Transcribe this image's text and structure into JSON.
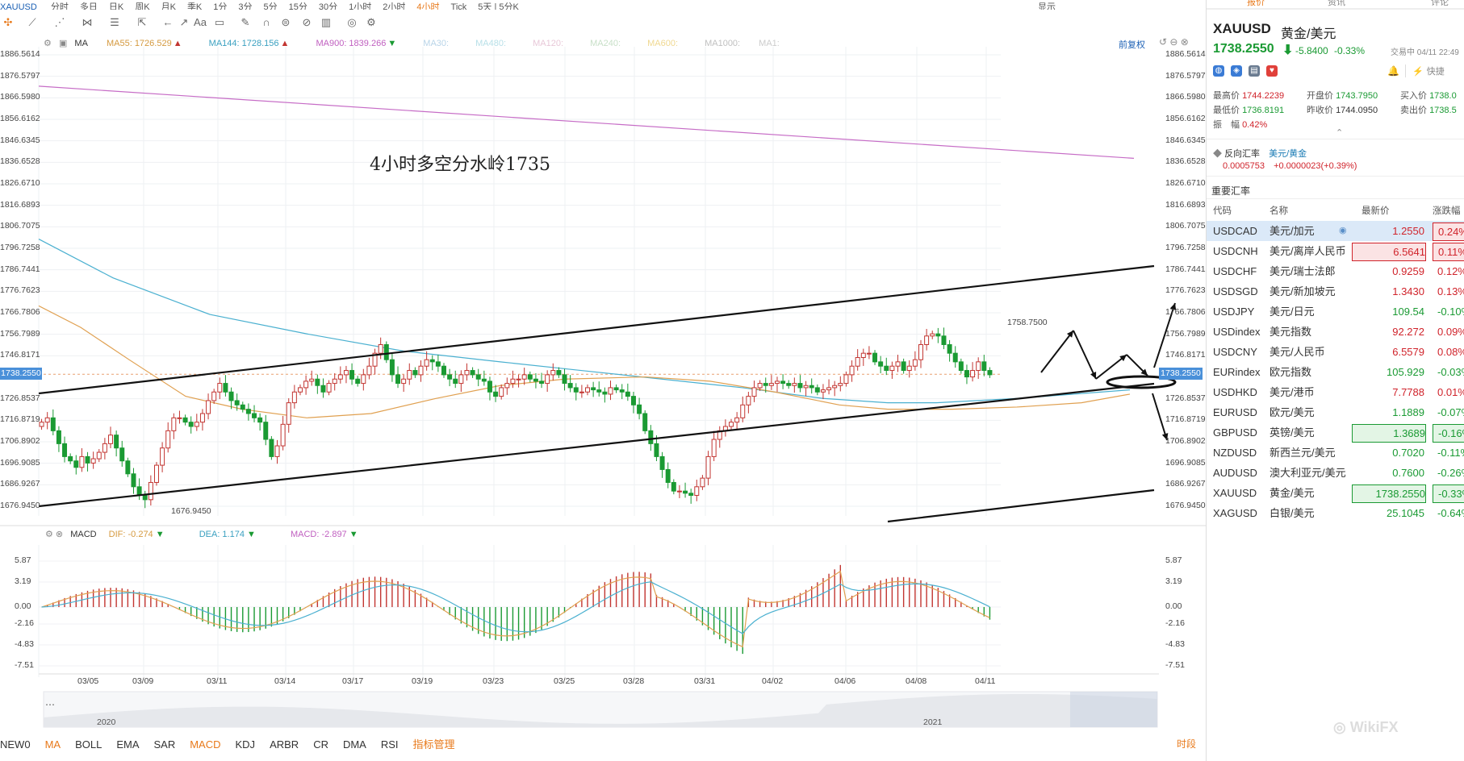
{
  "toolbar_top": {
    "symbol": "XAUUSD",
    "periods": [
      "分时",
      "多日",
      "日K",
      "周K",
      "月K",
      "季K",
      "1分",
      "3分",
      "5分",
      "15分",
      "30分",
      "1小时",
      "2小时",
      "4小时",
      "Tick",
      "5天 | 5分K"
    ],
    "active_period": "4小时",
    "display_label": "显示"
  },
  "indicators": {
    "ma": "MA",
    "ma55": "MA55: 1726.529",
    "ma144": "MA144: 1728.156",
    "ma900": "MA900: 1839.266",
    "ma30": "MA30:",
    "ma480": "MA480:",
    "ma120": "MA120:",
    "ma240": "MA240:",
    "ma600": "MA600:",
    "ma1000": "MA1000:",
    "ma1": "MA1:",
    "reweight": "前复权"
  },
  "chart_annotation": "4小时多空分水岭1735",
  "marker_high": "1758.7500",
  "marker_low": "1676.9450",
  "current_price_tag": "1738.2550",
  "price_ticks": [
    "1886.5614",
    "1876.5797",
    "1866.5980",
    "1856.6162",
    "1846.6345",
    "1836.6528",
    "1826.6710",
    "1816.6893",
    "1806.7075",
    "1796.7258",
    "1786.7441",
    "1776.7623",
    "1766.7806",
    "1756.7989",
    "1746.8171",
    "1738.2550",
    "1726.8537",
    "1716.8719",
    "1706.8902",
    "1696.9085",
    "1686.9267",
    "1676.9450"
  ],
  "macd": {
    "label": "MACD",
    "dif": "DIF: -0.274",
    "dea": "DEA: 1.174",
    "macd": "MACD: -2.897",
    "ticks": [
      "5.87",
      "3.19",
      "0.00",
      "-2.16",
      "-4.83",
      "-7.51"
    ]
  },
  "dates": [
    "03/05",
    "03/09",
    "03/11",
    "03/14",
    "03/17",
    "03/19",
    "03/23",
    "03/25",
    "03/28",
    "03/31",
    "04/02",
    "04/06",
    "04/08",
    "04/11"
  ],
  "navigator": {
    "year_left": "2020",
    "year_right": "2021"
  },
  "bottom_tabs": [
    "NEW0",
    "MA",
    "BOLL",
    "EMA",
    "SAR",
    "MACD",
    "KDJ",
    "ARBR",
    "CR",
    "DMA",
    "RSI",
    "指标管理"
  ],
  "bottom_active": [
    "MA",
    "MACD",
    "指标管理"
  ],
  "bottom_right": "时段",
  "colors": {
    "up": "#c23531",
    "down": "#1a9a33",
    "ma55": "#e0a050",
    "ma144": "#4ab0d0",
    "ma900": "#c66cc6",
    "accent": "#e8791a"
  },
  "panel": {
    "tabs": [
      "报价",
      "资讯",
      "评论"
    ],
    "symbol": "XAUUSD",
    "name": "黄金/美元",
    "price": "1738.2550",
    "change": "-5.8400",
    "change_pct": "-0.33%",
    "status": "交易中 04/11 22:49",
    "quick": "快捷",
    "stats": {
      "high_label": "最高价",
      "high": "1744.2239",
      "open_label": "开盘价",
      "open": "1743.7950",
      "bid_label": "买入价",
      "bid": "1738.0",
      "low_label": "最低价",
      "low": "1736.8191",
      "prev_label": "昨收价",
      "prev": "1744.0950",
      "ask_label": "卖出价",
      "ask": "1738.5",
      "amp_label": "振　幅",
      "amp": "0.42%"
    },
    "reverse": {
      "label": "反向汇率",
      "pair": "美元/黄金",
      "value": "0.0005753",
      "change": "+0.0000023(+0.39%)"
    },
    "section_title": "重要汇率",
    "table_headers": [
      "代码",
      "名称",
      "最新价",
      "涨跌幅"
    ],
    "rows": [
      {
        "code": "USDCAD",
        "name": "美元/加元",
        "price": "1.2550",
        "chg": "0.24%",
        "dir": "up"
      },
      {
        "code": "USDCNH",
        "name": "美元/离岸人民币",
        "price": "6.5641",
        "chg": "0.11%",
        "dir": "up"
      },
      {
        "code": "USDCHF",
        "name": "美元/瑞士法郎",
        "price": "0.9259",
        "chg": "0.12%",
        "dir": "up"
      },
      {
        "code": "USDSGD",
        "name": "美元/新加坡元",
        "price": "1.3430",
        "chg": "0.13%",
        "dir": "up"
      },
      {
        "code": "USDJPY",
        "name": "美元/日元",
        "price": "109.54",
        "chg": "-0.10%",
        "dir": "down"
      },
      {
        "code": "USDindex",
        "name": "美元指数",
        "price": "92.272",
        "chg": "0.09%",
        "dir": "up"
      },
      {
        "code": "USDCNY",
        "name": "美元/人民币",
        "price": "6.5579",
        "chg": "0.08%",
        "dir": "up"
      },
      {
        "code": "EURindex",
        "name": "欧元指数",
        "price": "105.929",
        "chg": "-0.03%",
        "dir": "down"
      },
      {
        "code": "USDHKD",
        "name": "美元/港币",
        "price": "7.7788",
        "chg": "0.01%",
        "dir": "up"
      },
      {
        "code": "EURUSD",
        "name": "欧元/美元",
        "price": "1.1889",
        "chg": "-0.07%",
        "dir": "down"
      },
      {
        "code": "GBPUSD",
        "name": "英镑/美元",
        "price": "1.3689",
        "chg": "-0.16%",
        "dir": "down"
      },
      {
        "code": "NZDUSD",
        "name": "新西兰元/美元",
        "price": "0.7020",
        "chg": "-0.11%",
        "dir": "down"
      },
      {
        "code": "AUDUSD",
        "name": "澳大利亚元/美元",
        "price": "0.7600",
        "chg": "-0.26%",
        "dir": "down"
      },
      {
        "code": "XAUUSD",
        "name": "黄金/美元",
        "price": "1738.2550",
        "chg": "-0.33%",
        "dir": "down"
      },
      {
        "code": "XAGUSD",
        "name": "白银/美元",
        "price": "25.1045",
        "chg": "-0.64%",
        "dir": "down"
      }
    ]
  }
}
